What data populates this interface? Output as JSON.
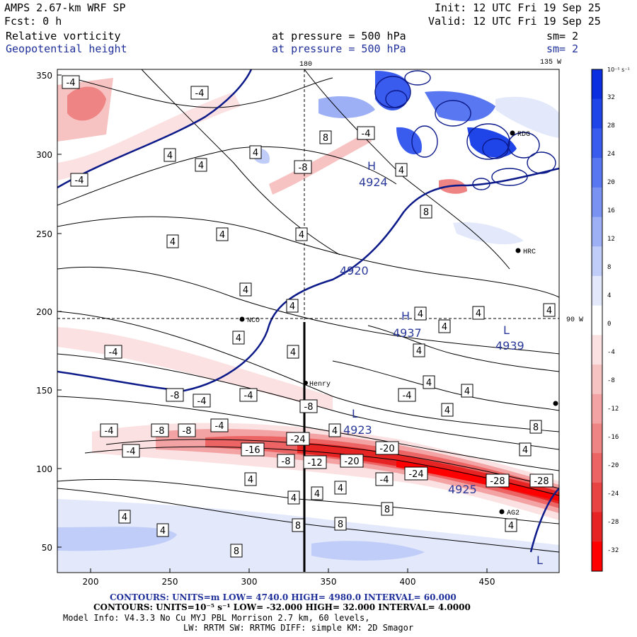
{
  "header": {
    "model": "AMPS 2.67-km WRF SP",
    "fcst": "Fcst:    0 h",
    "init": "Init: 12 UTC Fri 19 Sep 25",
    "valid": "Valid: 12 UTC Fri 19 Sep 25",
    "field1": {
      "name": "Relative vorticity",
      "pressure_label": "at pressure =  500 hPa",
      "sm": "sm= 2"
    },
    "field2": {
      "name": "Geopotential height",
      "pressure_label": "at pressure =  500 hPa",
      "sm": "sm= 2"
    }
  },
  "map": {
    "meridian_180": "180",
    "meridian_135w": "135 W",
    "parallel_90w": "90 W",
    "x_ticks": [
      "200",
      "250",
      "300",
      "350",
      "400",
      "450"
    ],
    "y_ticks": [
      "350",
      "300",
      "250",
      "200",
      "150",
      "100",
      "50"
    ],
    "stations": [
      {
        "name": "NCO"
      },
      {
        "name": "Henry"
      },
      {
        "name": "HRC"
      },
      {
        "name": "RDG"
      },
      {
        "name": "AG2"
      }
    ],
    "highs_lows": [
      {
        "sym": "H",
        "value": "4924"
      },
      {
        "sym": "H",
        "value": "4937"
      },
      {
        "sym": "L",
        "value": "4939"
      },
      {
        "sym": "L",
        "value": "4923"
      },
      {
        "sym": "",
        "value": "4925"
      },
      {
        "sym": "",
        "value": "4920"
      },
      {
        "sym": "L",
        "value": ""
      }
    ],
    "vorticity_labels": [
      "-4",
      "-4",
      "-4",
      "4",
      "4",
      "4",
      "4",
      "8",
      "-4",
      "4",
      "-8",
      "8",
      "4",
      "4",
      "4",
      "4",
      "4",
      "4",
      "4",
      "4",
      "4",
      "4",
      "4",
      "-4",
      "-8",
      "-4",
      "-4",
      "-8",
      "-4",
      "4",
      "4",
      "4",
      "8",
      "4",
      "-4",
      "-8",
      "-8",
      "-4",
      "4",
      "-4",
      "-16",
      "-24",
      "-20",
      "-8",
      "-12",
      "-20",
      "-24",
      "-28",
      "-28",
      "-4",
      "4",
      "4",
      "4",
      "4",
      "8",
      "4",
      "4",
      "8",
      "8",
      "4",
      "8"
    ]
  },
  "colorbar": {
    "units": "10⁻⁵ s⁻¹",
    "levels": [
      "32",
      "28",
      "24",
      "20",
      "16",
      "12",
      "8",
      "4",
      "0",
      "-4",
      "-8",
      "-12",
      "-16",
      "-20",
      "-24",
      "-28",
      "-32"
    ],
    "colors": [
      "#0a2ee0",
      "#1f44e8",
      "#3a5cee",
      "#5877f0",
      "#7a93f2",
      "#9db0f5",
      "#c0cdf8",
      "#e3e9fb",
      "#ffffff",
      "#fbe1e1",
      "#f7c2c2",
      "#f3a3a3",
      "#ef8484",
      "#ec6464",
      "#e94444",
      "#e62424",
      "#ff0000"
    ]
  },
  "footer": {
    "line1_label": "CONTOURS:  UNITS=m  LOW=   4740.0          HIGH=  4980.0          INTERVAL=    60.000",
    "line2_label": "CONTOURS:  UNITS=10⁻⁵ s⁻¹  LOW=  -32.000          HIGH=  32.000       INTERVAL=    4.0000",
    "line3": "Model Info: V4.3.3    No Cu   MYJ PBL  Morrison            2.7 km,  60 levels,",
    "line4": "LW: RRTM SW: RRTMG   DIFF: simple KM: 2D Smagor"
  }
}
